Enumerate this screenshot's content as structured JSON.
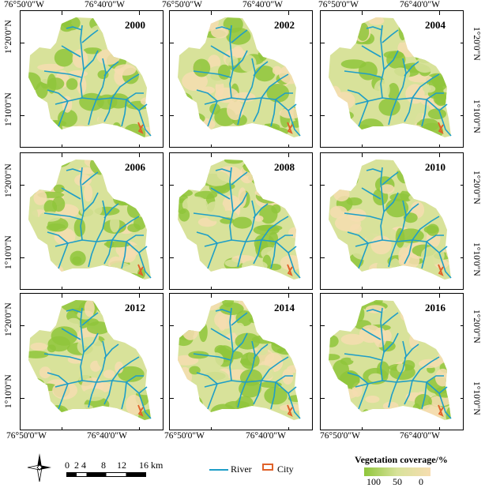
{
  "coords": {
    "lon_west": "76°50'0\"W",
    "lon_east": "76°40'0\"W",
    "lat_north": "1°20'0\"N",
    "lat_south": "1°10'0\"N"
  },
  "panels": [
    {
      "year": "2000"
    },
    {
      "year": "2002"
    },
    {
      "year": "2004"
    },
    {
      "year": "2006"
    },
    {
      "year": "2008"
    },
    {
      "year": "2010"
    },
    {
      "year": "2012"
    },
    {
      "year": "2014"
    },
    {
      "year": "2016"
    }
  ],
  "scale_bar": {
    "labels": [
      "0",
      "2",
      "4",
      "8",
      "12",
      "16 km"
    ]
  },
  "legend": {
    "river_label": "River",
    "city_label": "City",
    "coverage_title": "Vegetation coverage/%",
    "coverage_ticks": [
      "100",
      "50",
      "0"
    ]
  },
  "colors": {
    "river": "#1e9ec7",
    "city": "#e0622a",
    "veg_high": "#8fc63b",
    "veg_mid": "#d8e29a",
    "veg_low": "#f6ddb0"
  }
}
